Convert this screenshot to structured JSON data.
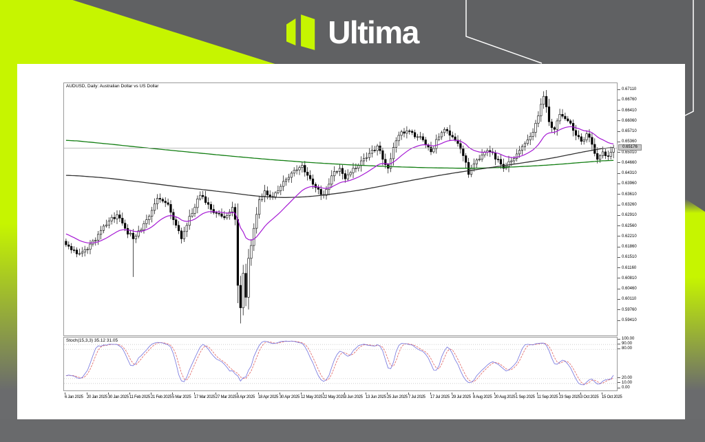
{
  "branding": {
    "logo_text": "Ultima"
  },
  "colors": {
    "accent": "#c6f500",
    "banner": "#606163",
    "page": "#696a6c",
    "edge_gray": "#6a6b6d",
    "plot_border": "#9a9a9a",
    "up_candle": "#ffffff",
    "down_candle": "#000000",
    "candle_outline": "#000000",
    "ma_fast": "#a518d4",
    "ma_mid": "#333333",
    "ma_slow": "#117d11",
    "stoch_main": "#7070dd",
    "stoch_signal": "#e06060",
    "stoch_level": "#bbbbbb",
    "bid_line": "#a8a8a8",
    "deco_line": "#ffffff"
  },
  "chart": {
    "title": "AUDUSD, Daily: Australian Dollar vs US Dollar",
    "bid_price_label": "0.65176",
    "indicator_label": "Stoch(15,3,3) 35.12 31.05",
    "price_labels": [
      "0.67110",
      "0.66760",
      "0.66410",
      "0.66060",
      "0.65710",
      "0.65360",
      "0.65010",
      "0.64660",
      "0.64310",
      "0.63960",
      "0.63610",
      "0.63260",
      "0.62910",
      "0.62560",
      "0.62210",
      "0.61860",
      "0.61510",
      "0.61160",
      "0.60810",
      "0.60460",
      "0.60110",
      "0.59760",
      "0.59410"
    ],
    "stoch_axis_labels": [
      {
        "label": "100.00",
        "value": 100
      },
      {
        "label": "90.00",
        "value": 90
      },
      {
        "label": "80.00",
        "value": 80
      },
      {
        "label": "20.00",
        "value": 20
      },
      {
        "label": "10.00",
        "value": 10
      },
      {
        "label": "0.00",
        "value": 0
      }
    ],
    "date_labels": [
      "6 Jan 2025",
      "20 Jan 2025",
      "30 Jan 2025",
      "11 Feb 2025",
      "21 Feb 2025",
      "5 Mar 2025",
      "17 Mar 2025",
      "27 Mar 2025",
      "8 Apr 2025",
      "18 Apr 2025",
      "30 Apr 2025",
      "12 May 2025",
      "22 May 2025",
      "3 Jun 2025",
      "13 Jun 2025",
      "25 Jun 2025",
      "7 Jul 2025",
      "17 Jul 2025",
      "29 Jul 2025",
      "8 Aug 2025",
      "20 Aug 2025",
      "1 Sep 2025",
      "11 Sep 2025",
      "23 Sep 2025",
      "3 Oct 2025",
      "15 Oct 2025"
    ]
  },
  "chart_data": {
    "type": "candlestick",
    "symbol": "AUDUSD",
    "timeframe": "Daily",
    "bars": 205,
    "price_axis": {
      "min": 0.5941,
      "max": 0.6711,
      "tick_step": 0.0035
    },
    "bid": 0.65176,
    "close_anchors": [
      [
        0,
        0.6195
      ],
      [
        4,
        0.6165
      ],
      [
        8,
        0.618
      ],
      [
        12,
        0.623
      ],
      [
        16,
        0.6275
      ],
      [
        19,
        0.6295
      ],
      [
        22,
        0.625
      ],
      [
        25,
        0.6215
      ],
      [
        28,
        0.6245
      ],
      [
        32,
        0.631
      ],
      [
        34,
        0.635
      ],
      [
        38,
        0.633
      ],
      [
        41,
        0.626
      ],
      [
        43,
        0.6215
      ],
      [
        46,
        0.629
      ],
      [
        50,
        0.636
      ],
      [
        53,
        0.633
      ],
      [
        56,
        0.63
      ],
      [
        59,
        0.6285
      ],
      [
        62,
        0.632
      ],
      [
        63,
        0.628
      ],
      [
        64,
        0.606
      ],
      [
        65,
        0.5985
      ],
      [
        66,
        0.61
      ],
      [
        67,
        0.602
      ],
      [
        68,
        0.615
      ],
      [
        70,
        0.625
      ],
      [
        72,
        0.6345
      ],
      [
        74,
        0.6375
      ],
      [
        77,
        0.6355
      ],
      [
        80,
        0.639
      ],
      [
        83,
        0.642
      ],
      [
        86,
        0.6445
      ],
      [
        88,
        0.646
      ],
      [
        91,
        0.6415
      ],
      [
        94,
        0.638
      ],
      [
        96,
        0.636
      ],
      [
        99,
        0.6425
      ],
      [
        102,
        0.645
      ],
      [
        104,
        0.6415
      ],
      [
        107,
        0.645
      ],
      [
        110,
        0.6475
      ],
      [
        113,
        0.65
      ],
      [
        116,
        0.6525
      ],
      [
        118,
        0.648
      ],
      [
        120,
        0.645
      ],
      [
        122,
        0.652
      ],
      [
        124,
        0.656
      ],
      [
        127,
        0.6575
      ],
      [
        130,
        0.6555
      ],
      [
        133,
        0.6545
      ],
      [
        136,
        0.6505
      ],
      [
        139,
        0.6555
      ],
      [
        141,
        0.658
      ],
      [
        144,
        0.6555
      ],
      [
        147,
        0.6515
      ],
      [
        149,
        0.647
      ],
      [
        150,
        0.643
      ],
      [
        152,
        0.6465
      ],
      [
        155,
        0.6495
      ],
      [
        158,
        0.6505
      ],
      [
        161,
        0.648
      ],
      [
        163,
        0.645
      ],
      [
        166,
        0.6475
      ],
      [
        169,
        0.651
      ],
      [
        172,
        0.6545
      ],
      [
        174,
        0.657
      ],
      [
        176,
        0.6625
      ],
      [
        178,
        0.669
      ],
      [
        179,
        0.6655
      ],
      [
        180,
        0.6605
      ],
      [
        182,
        0.658
      ],
      [
        184,
        0.663
      ],
      [
        186,
        0.6615
      ],
      [
        188,
        0.66
      ],
      [
        190,
        0.656
      ],
      [
        192,
        0.654
      ],
      [
        194,
        0.6565
      ],
      [
        196,
        0.653
      ],
      [
        198,
        0.648
      ],
      [
        200,
        0.6505
      ],
      [
        202,
        0.649
      ],
      [
        204,
        0.65176
      ]
    ],
    "wick_overrides": [
      {
        "i": 25,
        "low": 0.6088
      },
      {
        "i": 65,
        "low": 0.5933
      },
      {
        "i": 66,
        "low": 0.596
      },
      {
        "i": 178,
        "high": 0.6707
      }
    ],
    "ma_fast": {
      "type": "ema",
      "period": 21,
      "seed": 0.6235
    },
    "ma_mid_anchors": [
      [
        0,
        0.6428
      ],
      [
        15,
        0.6418
      ],
      [
        30,
        0.6402
      ],
      [
        45,
        0.6385
      ],
      [
        60,
        0.637
      ],
      [
        70,
        0.6358
      ],
      [
        80,
        0.6352
      ],
      [
        90,
        0.6355
      ],
      [
        100,
        0.6365
      ],
      [
        110,
        0.6378
      ],
      [
        120,
        0.6395
      ],
      [
        130,
        0.6412
      ],
      [
        140,
        0.6428
      ],
      [
        150,
        0.6442
      ],
      [
        160,
        0.6455
      ],
      [
        170,
        0.6468
      ],
      [
        180,
        0.6482
      ],
      [
        190,
        0.65
      ],
      [
        197,
        0.6512
      ],
      [
        204,
        0.6522
      ]
    ],
    "ma_slow_anchors": [
      [
        0,
        0.6545
      ],
      [
        15,
        0.6532
      ],
      [
        30,
        0.6518
      ],
      [
        45,
        0.6505
      ],
      [
        60,
        0.6492
      ],
      [
        75,
        0.648
      ],
      [
        90,
        0.647
      ],
      [
        105,
        0.6462
      ],
      [
        120,
        0.6456
      ],
      [
        135,
        0.6452
      ],
      [
        150,
        0.645
      ],
      [
        160,
        0.6452
      ],
      [
        170,
        0.6456
      ],
      [
        180,
        0.6461
      ],
      [
        190,
        0.6468
      ],
      [
        204,
        0.6478
      ]
    ],
    "stochastic": {
      "k_period": 15,
      "slowing": 3,
      "d_period": 3,
      "last_k": 35.12,
      "last_d": 31.05,
      "levels": [
        90,
        80,
        20,
        10
      ],
      "range": [
        0,
        100
      ]
    }
  }
}
